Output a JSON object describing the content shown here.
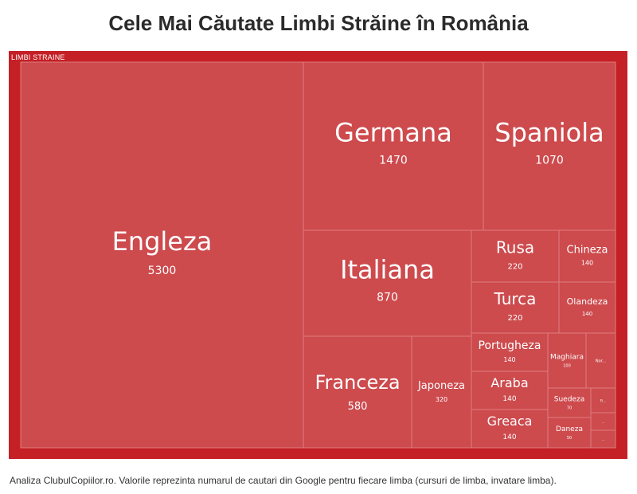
{
  "title": "Cele Mai Căutate Limbi Străine în România",
  "footer": "Analiza ClubulCopiilor.ro. Valorile reprezinta numarul de cautari din Google pentru fiecare limba (cursuri de limba, invatare limba).",
  "colors": {
    "frame": "#c42026",
    "tile": "#cd4a4d",
    "tile_border": "#e07e80",
    "text": "#ffffff"
  },
  "chart_data": {
    "type": "treemap",
    "group": "LIMBI STRAINE",
    "items": [
      {
        "name": "Engleza",
        "value": 5300
      },
      {
        "name": "Germana",
        "value": 1470
      },
      {
        "name": "Spaniola",
        "value": 1070
      },
      {
        "name": "Italiana",
        "value": 870
      },
      {
        "name": "Franceza",
        "value": 580
      },
      {
        "name": "Japoneza",
        "value": 320
      },
      {
        "name": "Rusa",
        "value": 220
      },
      {
        "name": "Turca",
        "value": 220
      },
      {
        "name": "Chineza",
        "value": 140
      },
      {
        "name": "Olandeza",
        "value": 140
      },
      {
        "name": "Portugheza",
        "value": 140
      },
      {
        "name": "Araba",
        "value": 140
      },
      {
        "name": "Greaca",
        "value": 140
      },
      {
        "name": "Maghiara",
        "value": 100
      },
      {
        "name": "Suedeza",
        "value": 70
      },
      {
        "name": "Daneza",
        "value": 50
      },
      {
        "name": "Nor...",
        "value": null
      },
      {
        "name": "Fi...",
        "value": null
      },
      {
        "name": "...",
        "value": null
      },
      {
        "name": "...",
        "value": null
      }
    ]
  }
}
